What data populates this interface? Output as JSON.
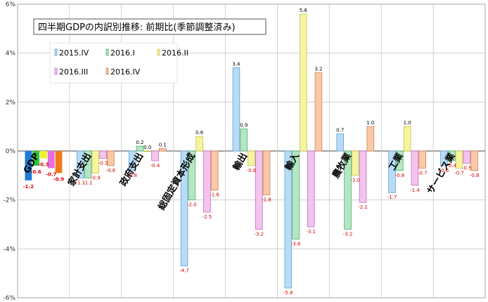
{
  "chart_data": {
    "type": "bar",
    "title": "四半期GDPの内訳別推移: 前期比(季節調整済み)",
    "categories": [
      "GDP",
      "家計支出",
      "政府支出",
      "総固定資本形成",
      "輸出",
      "輸入",
      "農牧業",
      "工業",
      "サービス業"
    ],
    "ylim": [
      -6,
      6
    ],
    "yticks": [
      "6%",
      "4%",
      "2%",
      "0%",
      "-2%",
      "-4%",
      "-6%"
    ],
    "grid": true,
    "legend": "top-left",
    "series": [
      {
        "name": "2015.IV",
        "values": [
          -1.2,
          -1.1,
          -0.8,
          -4.7,
          3.4,
          -5.6,
          0.7,
          -1.7,
          -0.6
        ],
        "labels": [
          "-1.2",
          "-1.1",
          "-0.8",
          "-4.7",
          "3.4",
          "-5.6",
          "0.7",
          "-1.7",
          "-0.6"
        ],
        "color": "#b8dcf5",
        "edge": "#5fa0d0",
        "gdp_color": "#1f7ad6"
      },
      {
        "name": "2016.I",
        "values": [
          -0.6,
          -1.1,
          0.2,
          -2.0,
          0.9,
          -3.6,
          -3.2,
          -0.8,
          -0.4
        ],
        "labels": [
          "-0.6",
          "-1.1",
          "0.2",
          "-2.0",
          "0.9",
          "-3.6",
          "-3.2",
          "-0.8",
          "-0.4"
        ],
        "color": "#b5e6c4",
        "edge": "#4fae6c",
        "gdp_color": "#2ec43c"
      },
      {
        "name": "2016.II",
        "values": [
          -0.3,
          -0.9,
          0.0,
          0.6,
          -0.6,
          5.6,
          -1.0,
          1.0,
          -0.7
        ],
        "labels": [
          "-0.3",
          "-0.9",
          "0.0",
          "0.6",
          "-0.6",
          "5.6",
          "-1.0",
          "1.0",
          "-0.7"
        ],
        "color": "#f5f5a0",
        "edge": "#c9c24a",
        "gdp_color": "#f2ef2a"
      },
      {
        "name": "2016.III",
        "values": [
          -0.7,
          -0.3,
          -0.4,
          -2.5,
          -3.2,
          -3.1,
          -2.1,
          -1.4,
          -0.5
        ],
        "labels": [
          "-0.7",
          "-0.3",
          "-0.4",
          "-2.5",
          "-3.2",
          "-3.1",
          "-2.1",
          "-1.4",
          "-0.5"
        ],
        "color": "#f4c4ee",
        "edge": "#c26bbf",
        "gdp_color": "#e36fe0"
      },
      {
        "name": "2016.IV",
        "values": [
          -0.9,
          -0.6,
          0.1,
          -1.6,
          -1.8,
          3.2,
          1.0,
          -0.7,
          -0.8
        ],
        "labels": [
          "-0.9",
          "-0.6",
          "0.1",
          "-1.6",
          "-1.8",
          "3.2",
          "1.0",
          "-0.7",
          "-0.8"
        ],
        "color": "#f9c9a8",
        "edge": "#d08050",
        "gdp_color": "#f07a1a"
      }
    ]
  }
}
